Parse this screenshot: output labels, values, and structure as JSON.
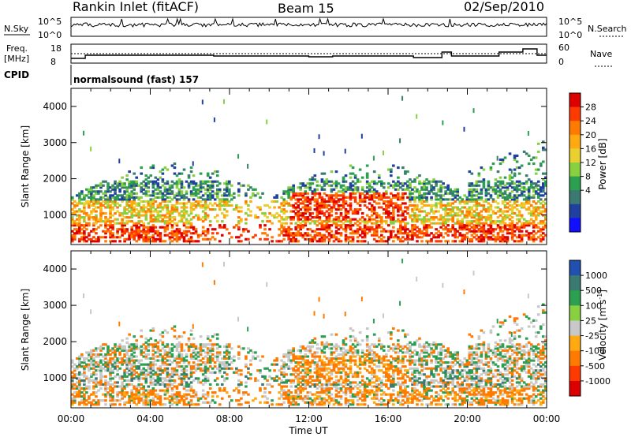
{
  "header": {
    "title": "Rankin Inlet (fitACF)",
    "beam": "Beam 15",
    "date": "02/Sep/2010"
  },
  "status_panels": {
    "nsky_label": "N.Sky",
    "nsky_ticks": [
      "10^5",
      "10^0"
    ],
    "nsearch_label": "N.Search",
    "freq_label_line1": "Freq.",
    "freq_label_line2": "[MHz]",
    "freq_ticks": [
      "18",
      "8"
    ],
    "nave_label": "Nave",
    "nave_ticks": [
      "60",
      "0"
    ],
    "cpid_label": "CPID",
    "cpid_value": "normalsound (fast) 157"
  },
  "chart_data": [
    {
      "type": "heatmap",
      "name": "power",
      "ylabel": "Slant Range [km]",
      "y_ticks": [
        1000,
        2000,
        3000,
        4000
      ],
      "y_tick_labels": [
        "1000",
        "2000",
        "3000",
        "4000"
      ],
      "ylim": [
        180,
        4500
      ],
      "x_ticks": [
        "00:00",
        "04:00",
        "08:00",
        "12:00",
        "16:00",
        "20:00",
        "00:00"
      ],
      "xlim_hours": [
        0,
        24
      ],
      "colorbar": {
        "label": "Power [dB]",
        "tick_labels": [
          "28",
          "24",
          "20",
          "16",
          "12",
          "8",
          "4"
        ],
        "colors": [
          "#dd0000",
          "#ff3a00",
          "#ff7a00",
          "#ffaa10",
          "#e8d030",
          "#88d040",
          "#2aa050",
          "#3a7a70",
          "#2040a0",
          "#1010ff"
        ]
      }
    },
    {
      "type": "heatmap",
      "name": "velocity",
      "ylabel": "Slant Range [km]",
      "y_ticks": [
        1000,
        2000,
        3000,
        4000
      ],
      "y_tick_labels": [
        "1000",
        "2000",
        "3000",
        "4000"
      ],
      "ylim": [
        180,
        4500
      ],
      "x_ticks": [
        "00:00",
        "04:00",
        "08:00",
        "12:00",
        "16:00",
        "20:00",
        "00:00"
      ],
      "xlabel": "Time UT",
      "colorbar": {
        "label": "Velocity [m s",
        "label_sup": "-1",
        "label_end": "]",
        "tick_labels": [
          "1000",
          "500",
          "100",
          "25",
          "-25",
          "-100",
          "-500",
          "-1000"
        ],
        "colors": [
          "#2050b0",
          "#3a7a70",
          "#2aa050",
          "#88d040",
          "#c8c8c8",
          "#ffaa10",
          "#ff7a00",
          "#ff3a00",
          "#dd0000"
        ]
      }
    }
  ]
}
